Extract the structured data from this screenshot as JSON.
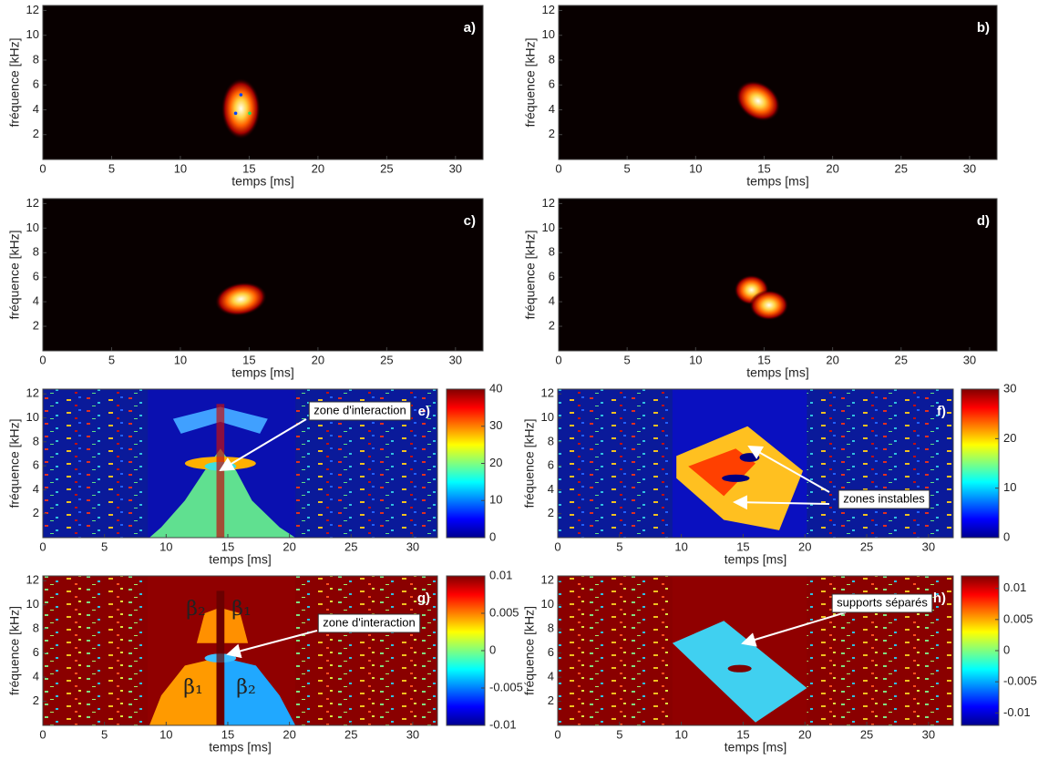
{
  "chart_data": [
    {
      "type": "heatmap",
      "colormap": "hot",
      "title": "a)",
      "x_label": "temps [ms]",
      "y_label": "fréquence [kHz]",
      "xlim": [
        0,
        32
      ],
      "xticks": [
        0,
        5,
        10,
        15,
        20,
        25,
        30
      ],
      "ylim": [
        0,
        12.4
      ],
      "yticks": [
        2,
        4,
        6,
        8,
        10,
        12
      ]
    },
    {
      "type": "heatmap",
      "colormap": "hot",
      "title": "b)",
      "x_label": "temps [ms]",
      "y_label": "fréquence [kHz]",
      "xlim": [
        0,
        32
      ],
      "xticks": [
        0,
        5,
        10,
        15,
        20,
        25,
        30
      ],
      "ylim": [
        0,
        12.4
      ],
      "yticks": [
        2,
        4,
        6,
        8,
        10,
        12
      ]
    },
    {
      "type": "heatmap",
      "colormap": "hot",
      "title": "c)",
      "x_label": "temps [ms]",
      "y_label": "fréquence [kHz]",
      "xlim": [
        0,
        32
      ],
      "xticks": [
        0,
        5,
        10,
        15,
        20,
        25,
        30
      ],
      "ylim": [
        0,
        12.4
      ],
      "yticks": [
        2,
        4,
        6,
        8,
        10,
        12
      ]
    },
    {
      "type": "heatmap",
      "colormap": "hot",
      "title": "d)",
      "x_label": "temps [ms]",
      "y_label": "fréquence [kHz]",
      "xlim": [
        0,
        32
      ],
      "xticks": [
        0,
        5,
        10,
        15,
        20,
        25,
        30
      ],
      "ylim": [
        0,
        12.4
      ],
      "yticks": [
        2,
        4,
        6,
        8,
        10,
        12
      ]
    },
    {
      "type": "heatmap",
      "colormap": "jet",
      "title": "e)",
      "x_label": "temps [ms]",
      "y_label": "fréquence [kHz]",
      "xlim": [
        0,
        32
      ],
      "xticks": [
        0,
        5,
        10,
        15,
        20,
        25,
        30
      ],
      "ylim": [
        0,
        12.4
      ],
      "yticks": [
        2,
        4,
        6,
        8,
        10,
        12
      ],
      "clim": [
        0,
        40
      ],
      "cticks": [
        0,
        10,
        20,
        30,
        40
      ],
      "annotations": [
        {
          "text": "zone d'interaction"
        }
      ]
    },
    {
      "type": "heatmap",
      "colormap": "jet",
      "title": "f)",
      "x_label": "temps [ms]",
      "y_label": "fréquence [kHz]",
      "xlim": [
        0,
        32
      ],
      "xticks": [
        0,
        5,
        10,
        15,
        20,
        25,
        30
      ],
      "ylim": [
        0,
        12.4
      ],
      "yticks": [
        2,
        4,
        6,
        8,
        10,
        12
      ],
      "clim": [
        0,
        30
      ],
      "cticks": [
        0,
        10,
        20,
        30
      ],
      "annotations": [
        {
          "text": "zones instables"
        }
      ]
    },
    {
      "type": "heatmap",
      "colormap": "jet",
      "title": "g)",
      "x_label": "temps [ms]",
      "y_label": "fréquence [kHz]",
      "xlim": [
        0,
        32
      ],
      "xticks": [
        0,
        5,
        10,
        15,
        20,
        25,
        30
      ],
      "ylim": [
        0,
        12.4
      ],
      "yticks": [
        2,
        4,
        6,
        8,
        10,
        12
      ],
      "clim": [
        -0.01,
        0.01
      ],
      "cticks": [
        -0.01,
        -0.005,
        0,
        0.005,
        0.01
      ],
      "annotations": [
        {
          "text": "zone d'interaction"
        },
        {
          "text": "β₂"
        },
        {
          "text": "β₁"
        },
        {
          "text": "β₁"
        },
        {
          "text": "β₂"
        }
      ]
    },
    {
      "type": "heatmap",
      "colormap": "jet",
      "title": "h)",
      "x_label": "temps [ms]",
      "y_label": "fréquence [kHz]",
      "xlim": [
        0,
        32
      ],
      "xticks": [
        0,
        5,
        10,
        15,
        20,
        25,
        30
      ],
      "ylim": [
        0,
        12.4
      ],
      "yticks": [
        2,
        4,
        6,
        8,
        10,
        12
      ],
      "clim": [
        -0.012,
        0.012
      ],
      "cticks": [
        -0.01,
        -0.005,
        0,
        0.005,
        0.01
      ],
      "annotations": [
        {
          "text": "supports séparés"
        }
      ]
    }
  ]
}
